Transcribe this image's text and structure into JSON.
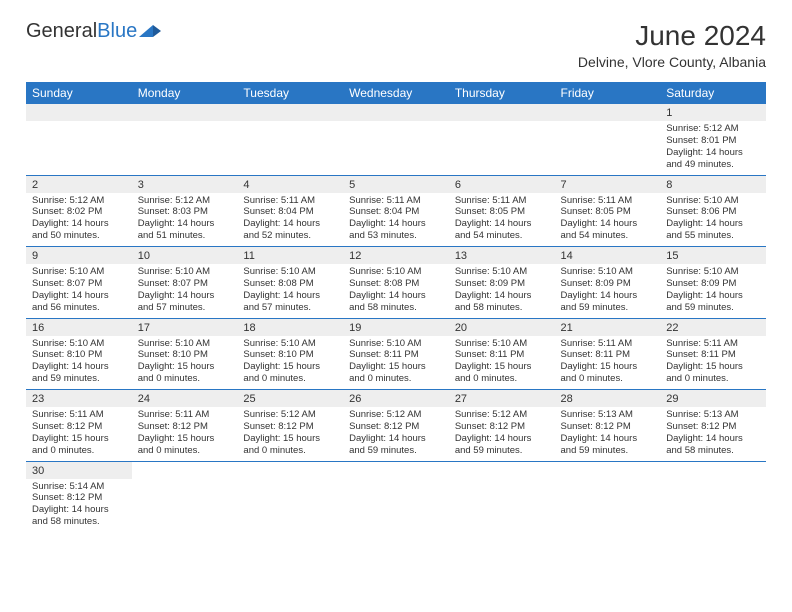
{
  "logo": {
    "general": "General",
    "blue": "Blue"
  },
  "title": "June 2024",
  "subtitle": "Delvine, Vlore County, Albania",
  "colors": {
    "header_bg": "#2976c4",
    "header_text": "#ffffff",
    "daynum_bg": "#eeeeee",
    "border": "#2976c4",
    "text": "#333333",
    "logo_blue": "#2976c4"
  },
  "weekdays": [
    "Sunday",
    "Monday",
    "Tuesday",
    "Wednesday",
    "Thursday",
    "Friday",
    "Saturday"
  ],
  "weeks": [
    [
      null,
      null,
      null,
      null,
      null,
      null,
      {
        "n": "1",
        "sunrise": "5:12 AM",
        "sunset": "8:01 PM",
        "daylight": "14 hours and 49 minutes."
      }
    ],
    [
      {
        "n": "2",
        "sunrise": "5:12 AM",
        "sunset": "8:02 PM",
        "daylight": "14 hours and 50 minutes."
      },
      {
        "n": "3",
        "sunrise": "5:12 AM",
        "sunset": "8:03 PM",
        "daylight": "14 hours and 51 minutes."
      },
      {
        "n": "4",
        "sunrise": "5:11 AM",
        "sunset": "8:04 PM",
        "daylight": "14 hours and 52 minutes."
      },
      {
        "n": "5",
        "sunrise": "5:11 AM",
        "sunset": "8:04 PM",
        "daylight": "14 hours and 53 minutes."
      },
      {
        "n": "6",
        "sunrise": "5:11 AM",
        "sunset": "8:05 PM",
        "daylight": "14 hours and 54 minutes."
      },
      {
        "n": "7",
        "sunrise": "5:11 AM",
        "sunset": "8:05 PM",
        "daylight": "14 hours and 54 minutes."
      },
      {
        "n": "8",
        "sunrise": "5:10 AM",
        "sunset": "8:06 PM",
        "daylight": "14 hours and 55 minutes."
      }
    ],
    [
      {
        "n": "9",
        "sunrise": "5:10 AM",
        "sunset": "8:07 PM",
        "daylight": "14 hours and 56 minutes."
      },
      {
        "n": "10",
        "sunrise": "5:10 AM",
        "sunset": "8:07 PM",
        "daylight": "14 hours and 57 minutes."
      },
      {
        "n": "11",
        "sunrise": "5:10 AM",
        "sunset": "8:08 PM",
        "daylight": "14 hours and 57 minutes."
      },
      {
        "n": "12",
        "sunrise": "5:10 AM",
        "sunset": "8:08 PM",
        "daylight": "14 hours and 58 minutes."
      },
      {
        "n": "13",
        "sunrise": "5:10 AM",
        "sunset": "8:09 PM",
        "daylight": "14 hours and 58 minutes."
      },
      {
        "n": "14",
        "sunrise": "5:10 AM",
        "sunset": "8:09 PM",
        "daylight": "14 hours and 59 minutes."
      },
      {
        "n": "15",
        "sunrise": "5:10 AM",
        "sunset": "8:09 PM",
        "daylight": "14 hours and 59 minutes."
      }
    ],
    [
      {
        "n": "16",
        "sunrise": "5:10 AM",
        "sunset": "8:10 PM",
        "daylight": "14 hours and 59 minutes."
      },
      {
        "n": "17",
        "sunrise": "5:10 AM",
        "sunset": "8:10 PM",
        "daylight": "15 hours and 0 minutes."
      },
      {
        "n": "18",
        "sunrise": "5:10 AM",
        "sunset": "8:10 PM",
        "daylight": "15 hours and 0 minutes."
      },
      {
        "n": "19",
        "sunrise": "5:10 AM",
        "sunset": "8:11 PM",
        "daylight": "15 hours and 0 minutes."
      },
      {
        "n": "20",
        "sunrise": "5:10 AM",
        "sunset": "8:11 PM",
        "daylight": "15 hours and 0 minutes."
      },
      {
        "n": "21",
        "sunrise": "5:11 AM",
        "sunset": "8:11 PM",
        "daylight": "15 hours and 0 minutes."
      },
      {
        "n": "22",
        "sunrise": "5:11 AM",
        "sunset": "8:11 PM",
        "daylight": "15 hours and 0 minutes."
      }
    ],
    [
      {
        "n": "23",
        "sunrise": "5:11 AM",
        "sunset": "8:12 PM",
        "daylight": "15 hours and 0 minutes."
      },
      {
        "n": "24",
        "sunrise": "5:11 AM",
        "sunset": "8:12 PM",
        "daylight": "15 hours and 0 minutes."
      },
      {
        "n": "25",
        "sunrise": "5:12 AM",
        "sunset": "8:12 PM",
        "daylight": "15 hours and 0 minutes."
      },
      {
        "n": "26",
        "sunrise": "5:12 AM",
        "sunset": "8:12 PM",
        "daylight": "14 hours and 59 minutes."
      },
      {
        "n": "27",
        "sunrise": "5:12 AM",
        "sunset": "8:12 PM",
        "daylight": "14 hours and 59 minutes."
      },
      {
        "n": "28",
        "sunrise": "5:13 AM",
        "sunset": "8:12 PM",
        "daylight": "14 hours and 59 minutes."
      },
      {
        "n": "29",
        "sunrise": "5:13 AM",
        "sunset": "8:12 PM",
        "daylight": "14 hours and 58 minutes."
      }
    ],
    [
      {
        "n": "30",
        "sunrise": "5:14 AM",
        "sunset": "8:12 PM",
        "daylight": "14 hours and 58 minutes."
      },
      null,
      null,
      null,
      null,
      null,
      null
    ]
  ],
  "labels": {
    "sunrise": "Sunrise: ",
    "sunset": "Sunset: ",
    "daylight": "Daylight: "
  }
}
